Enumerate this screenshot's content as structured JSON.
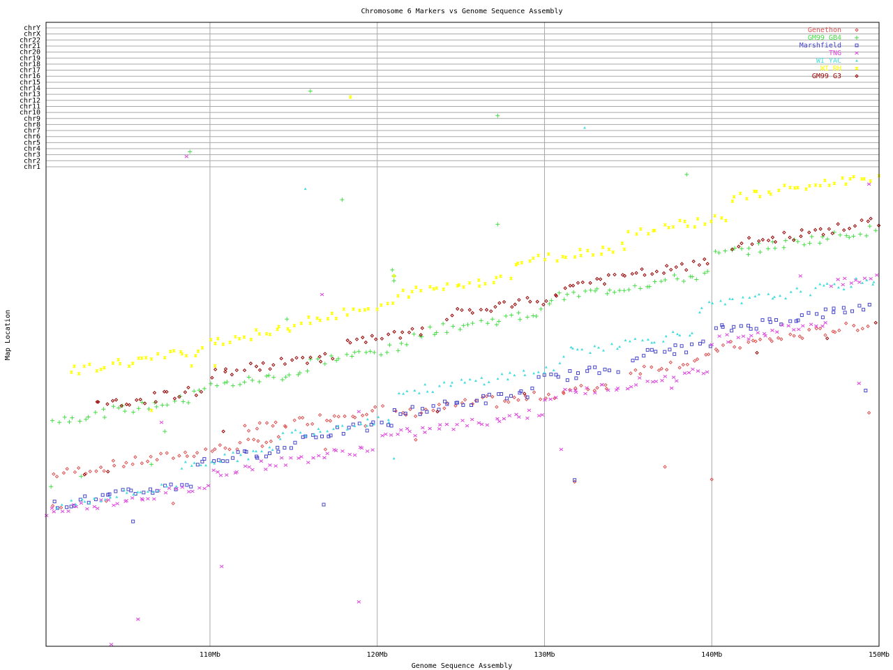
{
  "chart_data": {
    "type": "scatter",
    "title": "Chromosome 6 Markers vs Genome Sequence Assembly",
    "xlabel": "Genome Sequence Assembly",
    "ylabel": "Map Location",
    "xlim": [
      100.2,
      150
    ],
    "x_ticks": [
      {
        "value": 110,
        "label": "110Mb"
      },
      {
        "value": 120,
        "label": "120Mb"
      },
      {
        "value": 130,
        "label": "130Mb"
      },
      {
        "value": 140,
        "label": "140Mb"
      },
      {
        "value": 150,
        "label": "150Mb"
      }
    ],
    "chromosome_rows": [
      "chrY",
      "chrX",
      "chr22",
      "chr21",
      "chr20",
      "chr19",
      "chr18",
      "chr17",
      "chr16",
      "chr15",
      "chr14",
      "chr13",
      "chr12",
      "chr11",
      "chr10",
      "chr9",
      "chr8",
      "chr7",
      "chr6",
      "chr5",
      "chr4",
      "chr3",
      "chr2",
      "chr1"
    ],
    "legend_position": "top-right",
    "grid": true,
    "series": [
      {
        "name": "Genethon",
        "color": "#e05050",
        "marker": "diamond",
        "segments": [
          [
            100.5,
            114.2,
            0.18
          ],
          [
            112,
            120.5,
            0.26
          ],
          [
            121,
            127,
            0.21
          ],
          [
            127,
            134,
            0.19
          ],
          [
            135,
            140,
            0.25
          ],
          [
            140,
            149.5,
            0.3
          ]
        ],
        "points": [
          [
            100.6,
            117.4
          ],
          [
            101.1,
            117.1
          ],
          [
            103.8,
            118.2
          ],
          [
            107.8,
            117.8
          ],
          [
            116.9,
            126.8
          ],
          [
            119.3,
            130.7
          ],
          [
            122.3,
            128.4
          ],
          [
            131.8,
            121.4
          ],
          [
            137.2,
            123.9
          ],
          [
            140,
            121.8
          ],
          [
            149.4,
            132.9
          ]
        ]
      },
      {
        "name": "GM99 GB4",
        "color": "#44dd44",
        "marker": "plus",
        "segments": [
          [
            100.5,
            109,
            0.48
          ],
          [
            109,
            116,
            0.53
          ],
          [
            116,
            122,
            0.58
          ],
          [
            122,
            130,
            0.65
          ],
          [
            130,
            140,
            0.72
          ],
          [
            140,
            150,
            0.82
          ]
        ],
        "points": [
          [
            100.5,
            120.6
          ],
          [
            102.3,
            122.3
          ],
          [
            106.5,
            124.3
          ],
          [
            107.3,
            129.8
          ],
          [
            108.8,
            176.4
          ],
          [
            114.6,
            148.5
          ],
          [
            116,
            186.5
          ],
          [
            117.9,
            168.4
          ],
          [
            120.9,
            156.7
          ],
          [
            121,
            155.7
          ],
          [
            121,
            154.9
          ],
          [
            127.2,
            182.4
          ],
          [
            127.2,
            164.3
          ],
          [
            138.5,
            172.6
          ]
        ]
      },
      {
        "name": "Marshfield",
        "color": "#4444cc",
        "marker": "square",
        "segments": [
          [
            100.5,
            109,
            0.01
          ],
          [
            109,
            115,
            0.12
          ],
          [
            115,
            121,
            0.17
          ],
          [
            121,
            129.5,
            0.22
          ],
          [
            129.5,
            134.5,
            0.28
          ],
          [
            135,
            140,
            0.33
          ],
          [
            140,
            149.5,
            0.4
          ]
        ],
        "points": [
          [
            105.4,
            114.8
          ],
          [
            116.8,
            117.6
          ],
          [
            131.8,
            121.7
          ],
          [
            149.2,
            136.6
          ]
        ]
      },
      {
        "name": "TNG",
        "color": "#dd44dd",
        "marker": "x",
        "segments": [
          [
            100,
            110,
            -0.02
          ],
          [
            110,
            120,
            0.05
          ],
          [
            120,
            130,
            0.1
          ],
          [
            130,
            140,
            0.18
          ],
          [
            140,
            147,
            0.35
          ],
          [
            147,
            150,
            0.55
          ]
        ],
        "points": [
          [
            104.1,
            94.3
          ],
          [
            105.7,
            98.5
          ],
          [
            107.1,
            131.3
          ],
          [
            110.7,
            107.3
          ],
          [
            116.7,
            152.6
          ],
          [
            118.9,
            101.4
          ],
          [
            118.9,
            133.1
          ],
          [
            131,
            126.8
          ],
          [
            137.6,
            137
          ],
          [
            145.3,
            155.7
          ],
          [
            148.8,
            137.8
          ],
          [
            108.6,
            175.6
          ],
          [
            149.4,
            171
          ]
        ]
      },
      {
        "name": "WI YAC",
        "color": "#44dddd",
        "marker": "triangle",
        "segments": [
          [
            100.8,
            108,
            0.01
          ],
          [
            108,
            114,
            0.12
          ],
          [
            114,
            121,
            0.2
          ],
          [
            121,
            131,
            0.33
          ],
          [
            131,
            139,
            0.41
          ],
          [
            139,
            150,
            0.54
          ]
        ],
        "points": [
          [
            115.7,
            170.2
          ],
          [
            121,
            125.3
          ],
          [
            132.4,
            180.4
          ]
        ]
      },
      {
        "name": "WI RH",
        "color": "#ffff00",
        "marker": "star",
        "segments": [
          [
            101.5,
            109.5,
            0.74
          ],
          [
            109.5,
            115,
            0.78
          ],
          [
            115,
            121,
            0.82
          ],
          [
            121,
            128,
            0.88
          ],
          [
            128,
            135,
            0.95
          ],
          [
            135,
            141,
            1.02
          ],
          [
            141,
            150,
            1.12
          ]
        ],
        "points": [
          [
            106.5,
            133.3
          ],
          [
            108.9,
            140.7
          ],
          [
            110.3,
            140.7
          ],
          [
            118.4,
            185.5
          ],
          [
            121,
            155.7
          ]
        ]
      },
      {
        "name": "GM99 G3",
        "color": "#990000",
        "marker": "diamond",
        "segments": [
          [
            103,
            109.5,
            0.52
          ],
          [
            110,
            117.5,
            0.6
          ],
          [
            118,
            123,
            0.65
          ],
          [
            124,
            131,
            0.72
          ],
          [
            131,
            140,
            0.78
          ],
          [
            141,
            150,
            0.86
          ]
        ],
        "points": [
          [
            102.5,
            122.6
          ],
          [
            103.9,
            123.1
          ],
          [
            110.8,
            129.8
          ],
          [
            123.6,
            133.1
          ],
          [
            128.8,
            136.1
          ],
          [
            142.7,
            142.9
          ],
          [
            146.9,
            145.3
          ],
          [
            149.8,
            147.9
          ]
        ]
      }
    ],
    "legend": [
      {
        "name": "Genethon",
        "color": "#e05050"
      },
      {
        "name": "GM99 GB4",
        "color": "#44dd44"
      },
      {
        "name": "Marshfield",
        "color": "#4444cc"
      },
      {
        "name": "TNG",
        "color": "#dd44dd"
      },
      {
        "name": "WI YAC",
        "color": "#44dddd"
      },
      {
        "name": "WI RH",
        "color": "#ffff00"
      },
      {
        "name": "GM99 G3",
        "color": "#990000"
      }
    ]
  }
}
